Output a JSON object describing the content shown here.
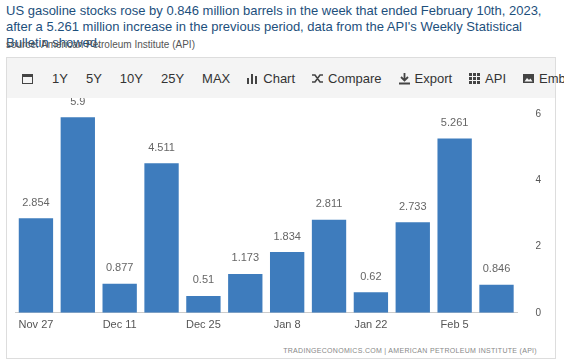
{
  "headline": "US gasoline stocks rose by 0.846 million barrels in the week that ended February 10th, 2023, after a 5.261 million increase in the previous period, data from the API's Weekly Statistical Bulletin showed.",
  "source": "source: American Petroleum Institute (API)",
  "toolbar": [
    "1Y",
    "5Y",
    "10Y",
    "25Y",
    "MAX",
    "Chart",
    "Compare",
    "Export",
    "API",
    "Embed"
  ],
  "footer": "TRADINGECONOMICS.COM | AMERICAN PETROLEUM INSTITUTE (API)",
  "chart_data": {
    "type": "bar",
    "categories": [
      "Nov 27",
      null,
      "Dec 11",
      null,
      "Dec 25",
      null,
      "Jan 8",
      null,
      "Jan 22",
      null,
      "Feb 5",
      null
    ],
    "values": [
      2.854,
      5.9,
      0.877,
      4.511,
      0.51,
      1.173,
      1.834,
      2.811,
      0.62,
      2.733,
      5.261,
      0.846
    ],
    "color": "#3e7cbd",
    "ylim": [
      0,
      6
    ],
    "yticks": [
      0,
      2,
      4,
      6
    ],
    "grid": false,
    "data_labels": true
  }
}
